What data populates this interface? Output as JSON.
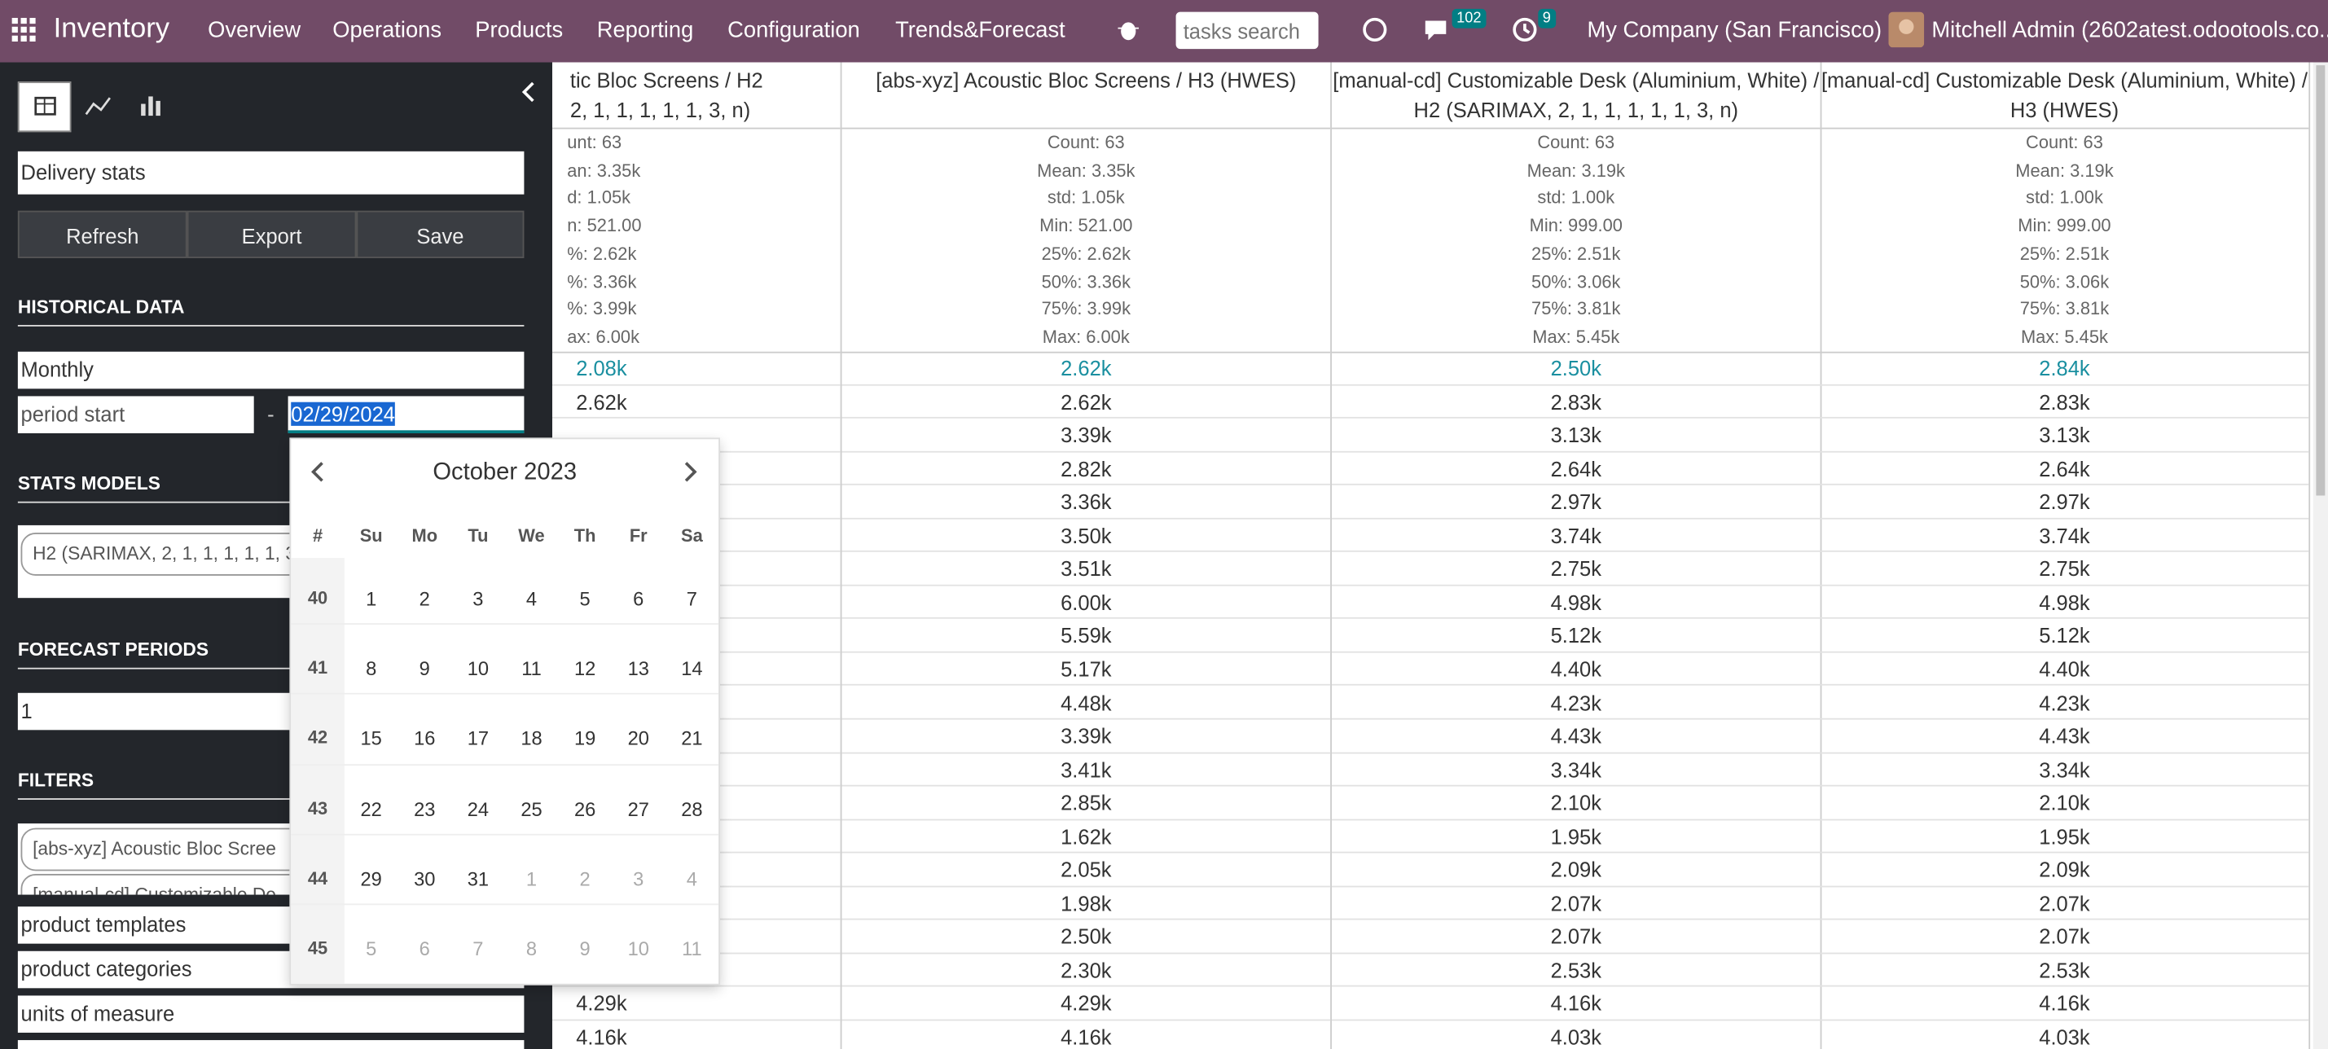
{
  "navbar": {
    "app": "Inventory",
    "menu": [
      "Overview",
      "Operations",
      "Products",
      "Reporting",
      "Configuration",
      "Trends&Forecast"
    ],
    "search_placeholder": "tasks search",
    "messages_badge": 102,
    "activities_badge": 9,
    "company": "My Company (San Francisco)",
    "user": "Mitchell Admin (2602atest.odootools.co..."
  },
  "sidebar": {
    "report": "Delivery stats",
    "buttons": [
      "Refresh",
      "Export",
      "Save"
    ],
    "historical_title": "HISTORICAL DATA",
    "period": "Monthly",
    "period_start": "period start",
    "separator": "-",
    "date": "02/29/2024",
    "stats_title": "STATS MODELS",
    "stats_tag": "H2 (SARIMAX, 2, 1, 1, 1, 1, 1, 3,",
    "forecast_title": "FORECAST PERIODS",
    "forecast_value": "1",
    "filters_title": "FILTERS",
    "filter_tags": [
      "[abs-xyz] Acoustic Bloc Scree",
      "[manual-cd] Customizable De"
    ],
    "filter_inputs": [
      "product templates",
      "product categories",
      "units of measure"
    ]
  },
  "calendar": {
    "title": "October 2023",
    "headers": [
      "#",
      "Su",
      "Mo",
      "Tu",
      "We",
      "Th",
      "Fr",
      "Sa"
    ],
    "weeks": [
      {
        "week": 40,
        "days": [
          1,
          2,
          3,
          4,
          5,
          6,
          7
        ]
      },
      {
        "week": 41,
        "days": [
          8,
          9,
          10,
          11,
          12,
          13,
          14
        ]
      },
      {
        "week": 42,
        "days": [
          15,
          16,
          17,
          18,
          19,
          20,
          21
        ]
      },
      {
        "week": 43,
        "days": [
          22,
          23,
          24,
          25,
          26,
          27,
          28
        ]
      },
      {
        "week": 44,
        "days": [
          29,
          30,
          31,
          1,
          2,
          3,
          4
        ]
      },
      {
        "week": 45,
        "days": [
          5,
          6,
          7,
          8,
          9,
          10,
          11
        ]
      }
    ]
  },
  "table": {
    "columns": [
      {
        "header": "tic Bloc Screens / H2\n2, 1, 1, 1, 1, 1, 3, n)",
        "stats": [
          "unt: 63",
          "an: 3.35k",
          "d: 1.05k",
          "n: 521.00",
          "%: 2.62k",
          "%: 3.36k",
          "%: 3.99k",
          "ax: 6.00k"
        ],
        "values": [
          "2.08k",
          "2.62k",
          null,
          null,
          null,
          null,
          null,
          null,
          null,
          null,
          null,
          null,
          null,
          null,
          null,
          null,
          null,
          null,
          null,
          "4.29k",
          "4.16k"
        ]
      },
      {
        "header": "[abs-xyz] Acoustic Bloc Screens / H3 (HWES)",
        "stats": [
          "Count: 63",
          "Mean: 3.35k",
          "std: 1.05k",
          "Min: 521.00",
          "25%: 2.62k",
          "50%: 3.36k",
          "75%: 3.99k",
          "Max: 6.00k"
        ],
        "values": [
          "2.62k",
          "2.62k",
          "3.39k",
          "2.82k",
          "3.36k",
          "3.50k",
          "3.51k",
          "6.00k",
          "5.59k",
          "5.17k",
          "4.48k",
          "3.39k",
          "3.41k",
          "2.85k",
          "1.62k",
          "2.05k",
          "1.98k",
          "2.50k",
          "2.30k",
          "4.29k",
          "4.16k"
        ]
      },
      {
        "header": "[manual-cd] Customizable Desk (Aluminium, White) / H2 (SARIMAX, 2, 1, 1, 1, 1, 1, 3, n)",
        "stats": [
          "Count: 63",
          "Mean: 3.19k",
          "std: 1.00k",
          "Min: 999.00",
          "25%: 2.51k",
          "50%: 3.06k",
          "75%: 3.81k",
          "Max: 5.45k"
        ],
        "values": [
          "2.50k",
          "2.83k",
          "3.13k",
          "2.64k",
          "2.97k",
          "3.74k",
          "2.75k",
          "4.98k",
          "5.12k",
          "4.40k",
          "4.23k",
          "4.43k",
          "3.34k",
          "2.10k",
          "1.95k",
          "2.09k",
          "2.07k",
          "2.07k",
          "2.53k",
          "4.16k",
          "4.03k"
        ]
      },
      {
        "header": "[manual-cd] Customizable Desk (Aluminium, White) / H3 (HWES)",
        "stats": [
          "Count: 63",
          "Mean: 3.19k",
          "std: 1.00k",
          "Min: 999.00",
          "25%: 2.51k",
          "50%: 3.06k",
          "75%: 3.81k",
          "Max: 5.45k"
        ],
        "values": [
          "2.84k",
          "2.83k",
          "3.13k",
          "2.64k",
          "2.97k",
          "3.74k",
          "2.75k",
          "4.98k",
          "5.12k",
          "4.40k",
          "4.23k",
          "4.43k",
          "3.34k",
          "2.10k",
          "1.95k",
          "2.09k",
          "2.07k",
          "2.07k",
          "2.53k",
          "4.16k",
          "4.03k"
        ]
      }
    ]
  }
}
